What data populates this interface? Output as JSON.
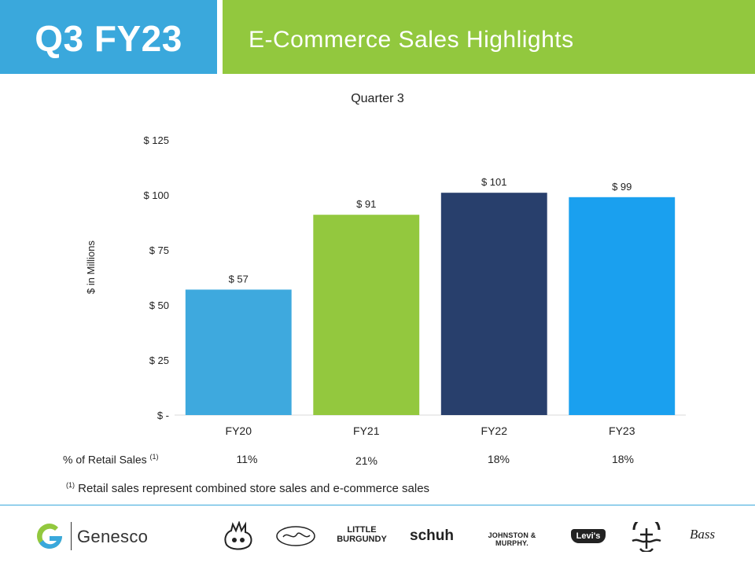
{
  "header": {
    "quarter": "Q3 FY23",
    "title": "E-Commerce Sales Highlights"
  },
  "chart_data": {
    "type": "bar",
    "title": "Quarter 3",
    "ylabel": "$ in Millions",
    "xlabel": "",
    "categories": [
      "FY20",
      "FY21",
      "FY22",
      "FY23"
    ],
    "values": [
      57,
      91,
      101,
      99
    ],
    "value_labels": [
      "$ 57",
      "$ 91",
      "$ 101",
      "$ 99"
    ],
    "colors": [
      "#3ea9de",
      "#93c83e",
      "#283f6c",
      "#1aa0ef"
    ],
    "ylim": [
      0,
      125
    ],
    "yticks": [
      0,
      25,
      50,
      75,
      100,
      125
    ],
    "ytick_labels": [
      "$ -",
      "$ 25",
      "$ 50",
      "$ 75",
      "$ 100",
      "$ 125"
    ],
    "grid": false,
    "legend": "none"
  },
  "retail_pct": {
    "label": "% of Retail Sales",
    "footnote_marker": "(1)",
    "values": [
      "11%",
      "21%",
      "18%",
      "18%"
    ]
  },
  "footnote": {
    "marker": "(1)",
    "text": "Retail sales represent combined store sales and e-commerce sales"
  },
  "footer": {
    "company": "Genesco",
    "brands": {
      "little_line1": "LITTLE",
      "little_line2": "BURGUNDY",
      "schuh": "schuh",
      "johnston_murphy": "JOHNSTON & MURPHY.",
      "levis": "Levi's",
      "bass": "Bass"
    },
    "icons": [
      "journeys-logo-icon",
      "journeys-kidz-logo-icon",
      "dockers-logo-icon"
    ],
    "colors": {
      "blue": "#3aa8dc",
      "green": "#92c83e"
    }
  }
}
